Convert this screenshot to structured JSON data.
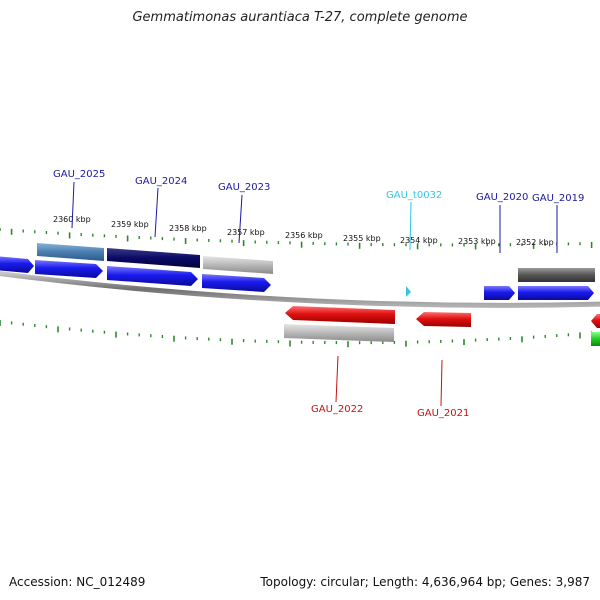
{
  "title": "Gemmatimonas aurantiaca T-27, complete genome",
  "accession_label": "Accession: NC_012489",
  "summary_label": "Topology: circular; Length: 4,636,964 bp; Genes: 3,987",
  "colors": {
    "forward_cds": "#1a1aee",
    "reverse_cds": "#e01010",
    "gene_label_forward": "#1a1aa0",
    "gene_label_reverse": "#cc1010",
    "trna": "#33c6e6",
    "backbone": "#8a8a8a",
    "tick": "#2a8a2a"
  },
  "scale_labels": [
    "2360 kbp",
    "2359 kbp",
    "2358 kbp",
    "2357 kbp",
    "2356 kbp",
    "2355 kbp",
    "2354 kbp",
    "2353 kbp",
    "2352 kbp"
  ],
  "gene_labels": [
    {
      "id": "gau2025",
      "text": "GAU_2025",
      "strand": "forward"
    },
    {
      "id": "gau2024",
      "text": "GAU_2024",
      "strand": "forward"
    },
    {
      "id": "gau2023",
      "text": "GAU_2023",
      "strand": "forward"
    },
    {
      "id": "gaut0032",
      "text": "GAU_t0032",
      "strand": "trna"
    },
    {
      "id": "gau2020",
      "text": "GAU_2020",
      "strand": "forward"
    },
    {
      "id": "gau2019",
      "text": "GAU_2019",
      "strand": "forward"
    },
    {
      "id": "gau2022",
      "text": "GAU_2022",
      "strand": "reverse"
    },
    {
      "id": "gau2021",
      "text": "GAU_2021",
      "strand": "reverse"
    }
  ]
}
